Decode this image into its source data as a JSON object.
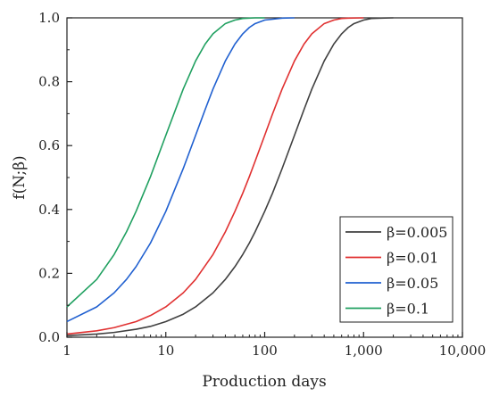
{
  "chart_data": {
    "type": "line",
    "title": "",
    "xlabel": "Production days",
    "ylabel": "f(N;β)",
    "xscale": "log",
    "xlim": [
      1,
      10000
    ],
    "ylim": [
      0,
      1.0
    ],
    "grid": false,
    "legend_position": "bottom-right",
    "x_ticks": [
      {
        "value": 1,
        "label": "1"
      },
      {
        "value": 10,
        "label": "10"
      },
      {
        "value": 100,
        "label": "100"
      },
      {
        "value": 1000,
        "label": "1,000"
      },
      {
        "value": 10000,
        "label": "10,000"
      }
    ],
    "y_ticks": [
      {
        "value": 0,
        "label": "0.0"
      },
      {
        "value": 0.2,
        "label": "0.2"
      },
      {
        "value": 0.4,
        "label": "0.4"
      },
      {
        "value": 0.6,
        "label": "0.6"
      },
      {
        "value": 0.8,
        "label": "0.8"
      },
      {
        "value": 1.0,
        "label": "1.0"
      }
    ],
    "series": [
      {
        "name": "β=0.005",
        "color": "#404040",
        "x": [
          1,
          2,
          3,
          5,
          7,
          10,
          15,
          20,
          30,
          40,
          50,
          60,
          70,
          80,
          100,
          120,
          150,
          200,
          250,
          300,
          400,
          500,
          600,
          700,
          800,
          1000,
          1200,
          1500,
          2000
        ],
        "y": [
          0.005,
          0.01,
          0.015,
          0.025,
          0.034,
          0.049,
          0.072,
          0.095,
          0.139,
          0.181,
          0.221,
          0.259,
          0.295,
          0.33,
          0.394,
          0.451,
          0.528,
          0.632,
          0.713,
          0.777,
          0.865,
          0.918,
          0.95,
          0.97,
          0.982,
          0.993,
          0.998,
          0.999,
          1.0
        ]
      },
      {
        "name": "β=0.01",
        "color": "#e03030",
        "x": [
          1,
          2,
          3,
          5,
          7,
          10,
          15,
          20,
          30,
          40,
          50,
          60,
          70,
          80,
          100,
          120,
          150,
          200,
          250,
          300,
          400,
          500,
          600,
          700,
          1000
        ],
        "y": [
          0.01,
          0.02,
          0.03,
          0.049,
          0.068,
          0.095,
          0.139,
          0.181,
          0.259,
          0.33,
          0.394,
          0.451,
          0.503,
          0.551,
          0.632,
          0.699,
          0.777,
          0.865,
          0.918,
          0.95,
          0.982,
          0.993,
          0.998,
          0.999,
          1.0
        ]
      },
      {
        "name": "β=0.05",
        "color": "#2060d0",
        "x": [
          1,
          2,
          3,
          4,
          5,
          7,
          10,
          15,
          20,
          25,
          30,
          40,
          50,
          60,
          70,
          80,
          100,
          150,
          200
        ],
        "y": [
          0.049,
          0.095,
          0.139,
          0.181,
          0.221,
          0.295,
          0.394,
          0.528,
          0.632,
          0.713,
          0.777,
          0.865,
          0.918,
          0.95,
          0.97,
          0.982,
          0.993,
          0.999,
          1.0
        ]
      },
      {
        "name": "β=0.1",
        "color": "#20a060",
        "x": [
          1,
          2,
          3,
          4,
          5,
          7,
          10,
          15,
          20,
          25,
          30,
          40,
          50,
          60,
          80,
          100
        ],
        "y": [
          0.095,
          0.181,
          0.259,
          0.33,
          0.394,
          0.503,
          0.632,
          0.777,
          0.865,
          0.918,
          0.95,
          0.982,
          0.993,
          0.998,
          1.0,
          1.0
        ]
      }
    ]
  }
}
